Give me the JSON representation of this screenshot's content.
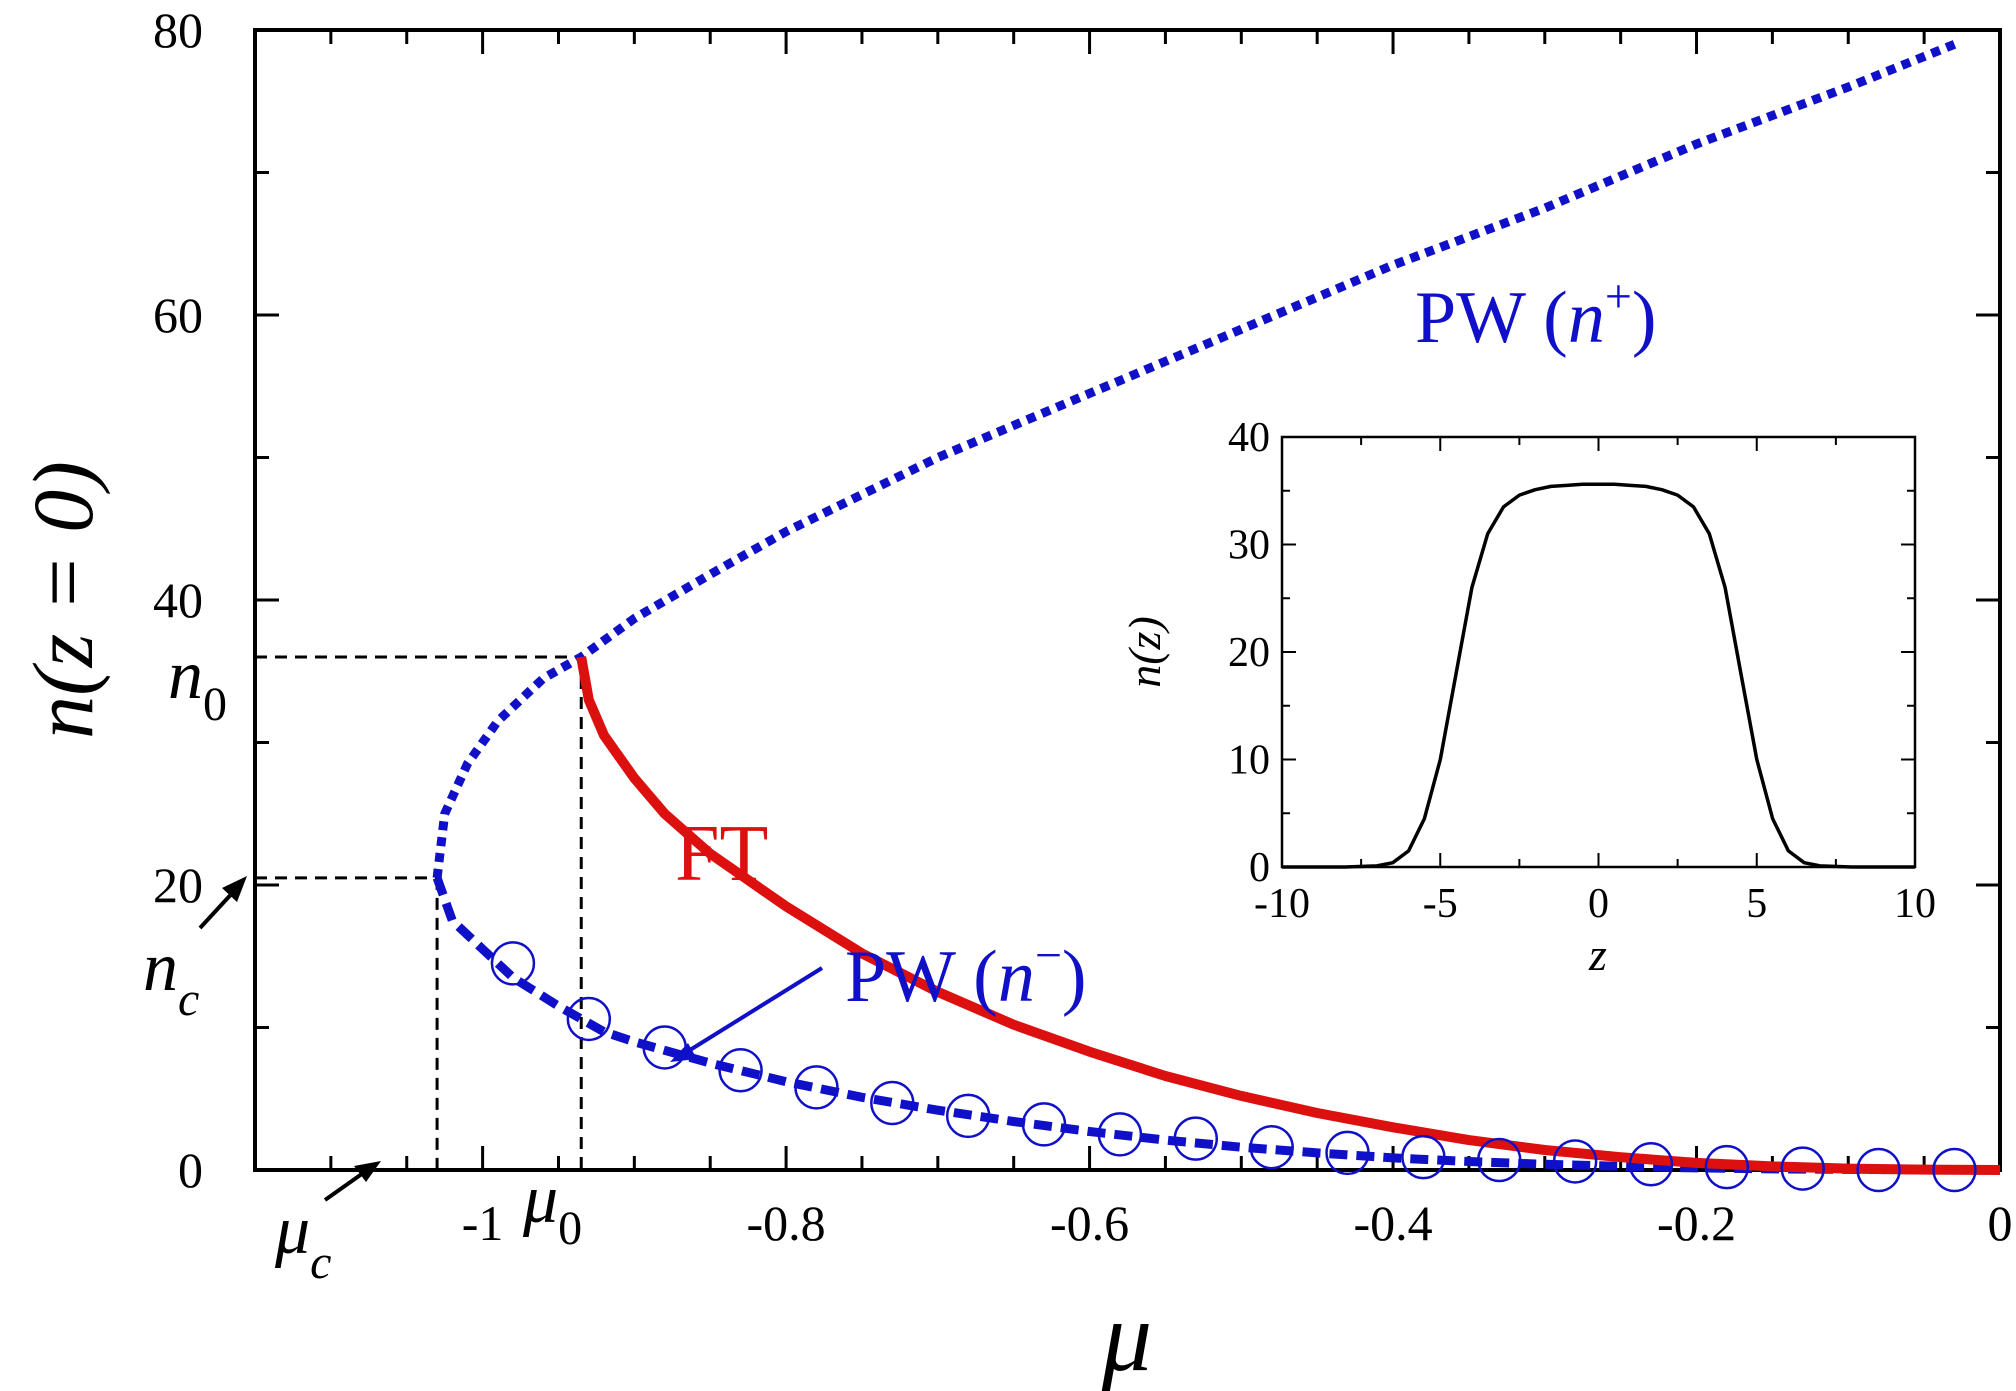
{
  "chart_data": [
    {
      "type": "line",
      "xlabel": "μ",
      "ylabel": "n(z = 0)",
      "xlim": [
        -1.15,
        0
      ],
      "ylim": [
        0,
        80
      ],
      "grid": false,
      "x_ticks": [
        -1,
        -0.8,
        -0.6,
        -0.4,
        -0.2,
        0
      ],
      "x_tick_labels": [
        "-1",
        "-0.8",
        "-0.6",
        "-0.4",
        "-0.2",
        "0"
      ],
      "y_ticks": [
        0,
        20,
        40,
        60,
        80
      ],
      "y_tick_labels": [
        "0",
        "20",
        "40",
        "60",
        "80"
      ],
      "colors": {
        "pw": "#1010c8",
        "ft": "#dd1010",
        "axes": "#000000"
      },
      "markers": {
        "mu_c": {
          "x": -1.03,
          "label": "μ",
          "sub": "c"
        },
        "mu_0": {
          "x": -0.935,
          "label": "μ",
          "sub": "0"
        },
        "n_c": {
          "y": 20.5,
          "label": "n",
          "sub": "c"
        },
        "n_0": {
          "y": 36,
          "label": "n",
          "sub": "0"
        }
      },
      "annotations": {
        "pw_plus": {
          "prefix": "PW (",
          "var": "n",
          "sup": "+",
          "suffix": ")"
        },
        "pw_minus": {
          "prefix": "PW (",
          "var": "n",
          "sup": "−",
          "suffix": ")"
        },
        "ft": "FT"
      },
      "series": [
        {
          "name": "PW (n+)",
          "style": "dotted",
          "x": [
            -1.03,
            -1.025,
            -1.01,
            -0.99,
            -0.96,
            -0.935,
            -0.9,
            -0.85,
            -0.8,
            -0.7,
            -0.6,
            -0.5,
            -0.4,
            -0.3,
            -0.2,
            -0.1,
            -0.03
          ],
          "y": [
            20.5,
            25,
            28.5,
            31.5,
            34.5,
            36,
            38.7,
            41.8,
            44.8,
            50,
            54.5,
            59,
            63.5,
            67.5,
            72,
            76,
            79
          ]
        },
        {
          "name": "PW (n−)",
          "style": "dashed",
          "x": [
            -1.03,
            -1.02,
            -1.0,
            -0.98,
            -0.95,
            -0.92,
            -0.9,
            -0.85,
            -0.8,
            -0.75,
            -0.7,
            -0.65,
            -0.6,
            -0.55,
            -0.5,
            -0.45,
            -0.4,
            -0.35,
            -0.3,
            -0.25,
            -0.2,
            -0.15,
            -0.1,
            -0.05,
            0
          ],
          "y": [
            20.5,
            17.5,
            15.5,
            13.5,
            11.5,
            9.7,
            9.0,
            7.5,
            6.2,
            5.1,
            4.2,
            3.4,
            2.7,
            2.1,
            1.6,
            1.2,
            0.85,
            0.6,
            0.4,
            0.25,
            0.15,
            0.08,
            0.04,
            0.015,
            0
          ]
        },
        {
          "name": "PW (n−) circles",
          "style": "circles",
          "x": [
            -0.98,
            -0.93,
            -0.88,
            -0.83,
            -0.78,
            -0.73,
            -0.68,
            -0.63,
            -0.58,
            -0.53,
            -0.48,
            -0.43,
            -0.38,
            -0.33,
            -0.28,
            -0.23,
            -0.18,
            -0.13,
            -0.08,
            -0.03
          ],
          "y": [
            14.5,
            10.6,
            8.6,
            7.0,
            5.8,
            4.7,
            3.8,
            3.2,
            2.5,
            2.2,
            1.6,
            1.2,
            0.9,
            0.7,
            0.6,
            0.4,
            0.2,
            0.1,
            0,
            0
          ]
        },
        {
          "name": "FT",
          "style": "solid",
          "x": [
            -0.935,
            -0.93,
            -0.92,
            -0.9,
            -0.88,
            -0.85,
            -0.8,
            -0.75,
            -0.7,
            -0.65,
            -0.6,
            -0.55,
            -0.5,
            -0.45,
            -0.4,
            -0.35,
            -0.3,
            -0.25,
            -0.2,
            -0.15,
            -0.1,
            -0.05,
            0
          ],
          "y": [
            36,
            33,
            30.5,
            27.5,
            25,
            22.2,
            18.5,
            15.2,
            12.5,
            10.2,
            8.3,
            6.6,
            5.2,
            4.0,
            3.0,
            2.1,
            1.4,
            0.9,
            0.5,
            0.25,
            0.1,
            0.03,
            0
          ]
        }
      ]
    },
    {
      "type": "line",
      "xlabel": "z",
      "ylabel": "n(z)",
      "xlim": [
        -10,
        10
      ],
      "ylim": [
        0,
        40
      ],
      "grid": false,
      "x_ticks": [
        -10,
        -5,
        0,
        5,
        10
      ],
      "x_tick_labels": [
        "-10",
        "-5",
        "0",
        "5",
        "10"
      ],
      "y_ticks": [
        0,
        10,
        20,
        30,
        40
      ],
      "y_tick_labels": [
        "0",
        "10",
        "20",
        "30",
        "40"
      ],
      "series": [
        {
          "name": "",
          "color": "#000000",
          "x": [
            -10,
            -8,
            -7,
            -6.5,
            -6,
            -5.5,
            -5,
            -4.5,
            -4,
            -3.5,
            -3,
            -2.5,
            -2,
            -1.5,
            -1,
            -0.5,
            0,
            0.5,
            1,
            1.5,
            2,
            2.5,
            3,
            3.5,
            4,
            4.5,
            5,
            5.5,
            6,
            6.5,
            7,
            8,
            10
          ],
          "y": [
            0,
            0,
            0.1,
            0.4,
            1.5,
            4.5,
            10,
            18,
            26,
            31,
            33.5,
            34.6,
            35.1,
            35.4,
            35.5,
            35.6,
            35.6,
            35.6,
            35.5,
            35.4,
            35.1,
            34.6,
            33.5,
            31,
            26,
            18,
            10,
            4.5,
            1.5,
            0.4,
            0.1,
            0,
            0
          ]
        }
      ]
    }
  ]
}
